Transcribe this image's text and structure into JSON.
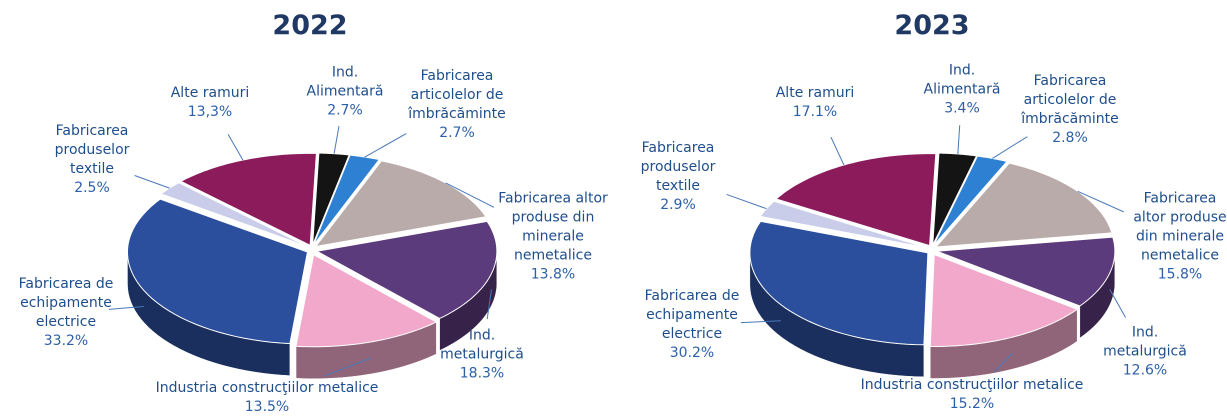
{
  "chart_data": [
    {
      "type": "pie3d",
      "title": "2022",
      "categories": [
        "Ind. Alimentară",
        "Fabricarea articolelor de îmbrăcăminte",
        "Fabricarea altor produse din minerale nemetalice",
        "Ind. metalurgică",
        "Industria construcţiilor metalice",
        "Fabricarea de echipamente electrice",
        "Fabricarea produselor textile",
        "Alte ramuri"
      ],
      "values": [
        2.7,
        2.7,
        13.8,
        18.3,
        13.5,
        33.2,
        2.5,
        13.3
      ],
      "value_labels": [
        "2.7%",
        "2.7%",
        "13.8%",
        "18.3%",
        "13.5%",
        "33.2%",
        "2.5%",
        "13,3%"
      ],
      "colors": [
        "#141414",
        "#2e80d2",
        "#b9aba9",
        "#5b3b7c",
        "#f2a8ca",
        "#2b4f9c",
        "#c9cde9",
        "#8c1b5c"
      ]
    },
    {
      "type": "pie3d",
      "title": "2023",
      "categories": [
        "Ind. Alimentară",
        "Fabricarea articolelor de îmbrăcăminte",
        "Fabricarea altor produse din minerale nemetalice",
        "Ind. metalurgică",
        "Industria construcţiilor metalice",
        "Fabricarea de echipamente electrice",
        "Fabricarea produselor textile",
        "Alte ramuri"
      ],
      "values": [
        3.4,
        2.8,
        15.8,
        12.6,
        15.2,
        30.2,
        2.9,
        17.1
      ],
      "value_labels": [
        "3.4%",
        "2.8%",
        "15.8%",
        "12.6%",
        "15.2%",
        "30.2%",
        "2.9%",
        "17.1%"
      ],
      "colors": [
        "#141414",
        "#2e80d2",
        "#b9aba9",
        "#5b3b7c",
        "#f2a8ca",
        "#2b4f9c",
        "#c9cde9",
        "#8c1b5c"
      ]
    }
  ]
}
